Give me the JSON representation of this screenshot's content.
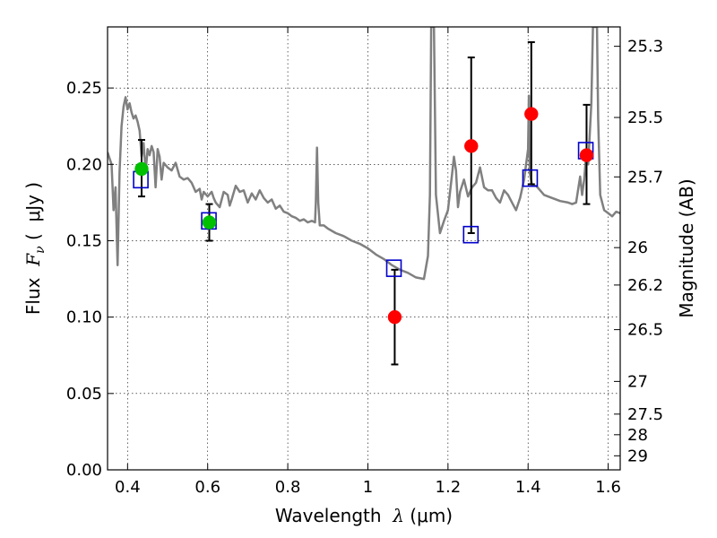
{
  "chart_data": {
    "type": "scatter",
    "xlabel": {
      "prefix": "Wavelength  ",
      "symbol": "λ",
      "unit": " (μm)"
    },
    "ylabel": {
      "prefix": "Flux  ",
      "symbol": "F",
      "subscript": "ν",
      "unit": " (  μJy )"
    },
    "y2label": "Magnitude (AB)",
    "xlim": [
      0.35,
      1.63
    ],
    "ylim": [
      0.0,
      0.29
    ],
    "xticks": [
      0.4,
      0.6,
      0.8,
      1.0,
      1.2,
      1.4,
      1.6
    ],
    "xtick_labels": [
      "0.4",
      "0.6",
      "0.8",
      "1",
      "1.2",
      "1.4",
      "1.6"
    ],
    "yticks": [
      0.0,
      0.05,
      0.1,
      0.15,
      0.2,
      0.25
    ],
    "ytick_labels": [
      "0.00",
      "0.05",
      "0.10",
      "0.15",
      "0.20",
      "0.25"
    ],
    "y2ticks": [
      {
        "label": "25.3",
        "flux": 0.2773
      },
      {
        "label": "25.5",
        "flux": 0.2307
      },
      {
        "label": "25.7",
        "flux": 0.1918
      },
      {
        "label": "26",
        "flux": 0.1455
      },
      {
        "label": "26.2",
        "flux": 0.121
      },
      {
        "label": "26.5",
        "flux": 0.0918
      },
      {
        "label": "27",
        "flux": 0.0579
      },
      {
        "label": "27.5",
        "flux": 0.0365
      },
      {
        "label": "28",
        "flux": 0.023
      },
      {
        "label": "29",
        "flux": 0.0092
      }
    ],
    "grid": true,
    "colors": {
      "model": "#808080",
      "observed_optical": "#00c000",
      "observed_nir": "#ff0000",
      "model_photometry": "#0000cc",
      "errorbar": "#000000"
    },
    "series": [
      {
        "kind": "model_spectrum",
        "points": [
          [
            0.35,
            0.208
          ],
          [
            0.355,
            0.204
          ],
          [
            0.36,
            0.2
          ],
          [
            0.365,
            0.17
          ],
          [
            0.37,
            0.185
          ],
          [
            0.375,
            0.134
          ],
          [
            0.38,
            0.195
          ],
          [
            0.385,
            0.225
          ],
          [
            0.39,
            0.238
          ],
          [
            0.395,
            0.244
          ],
          [
            0.4,
            0.236
          ],
          [
            0.405,
            0.24
          ],
          [
            0.41,
            0.234
          ],
          [
            0.415,
            0.23
          ],
          [
            0.42,
            0.232
          ],
          [
            0.425,
            0.228
          ],
          [
            0.43,
            0.222
          ],
          [
            0.435,
            0.205
          ],
          [
            0.44,
            0.214
          ],
          [
            0.445,
            0.195
          ],
          [
            0.45,
            0.21
          ],
          [
            0.455,
            0.206
          ],
          [
            0.46,
            0.212
          ],
          [
            0.465,
            0.208
          ],
          [
            0.47,
            0.185
          ],
          [
            0.475,
            0.21
          ],
          [
            0.48,
            0.205
          ],
          [
            0.485,
            0.19
          ],
          [
            0.49,
            0.201
          ],
          [
            0.5,
            0.198
          ],
          [
            0.51,
            0.196
          ],
          [
            0.52,
            0.201
          ],
          [
            0.53,
            0.192
          ],
          [
            0.54,
            0.19
          ],
          [
            0.55,
            0.191
          ],
          [
            0.56,
            0.188
          ],
          [
            0.57,
            0.182
          ],
          [
            0.58,
            0.184
          ],
          [
            0.585,
            0.177
          ],
          [
            0.59,
            0.182
          ],
          [
            0.6,
            0.179
          ],
          [
            0.61,
            0.182
          ],
          [
            0.615,
            0.178
          ],
          [
            0.62,
            0.175
          ],
          [
            0.63,
            0.172
          ],
          [
            0.64,
            0.182
          ],
          [
            0.65,
            0.18
          ],
          [
            0.655,
            0.173
          ],
          [
            0.66,
            0.177
          ],
          [
            0.67,
            0.186
          ],
          [
            0.68,
            0.182
          ],
          [
            0.69,
            0.183
          ],
          [
            0.7,
            0.175
          ],
          [
            0.71,
            0.181
          ],
          [
            0.72,
            0.177
          ],
          [
            0.73,
            0.183
          ],
          [
            0.74,
            0.178
          ],
          [
            0.75,
            0.175
          ],
          [
            0.76,
            0.177
          ],
          [
            0.77,
            0.171
          ],
          [
            0.78,
            0.173
          ],
          [
            0.79,
            0.169
          ],
          [
            0.8,
            0.168
          ],
          [
            0.81,
            0.166
          ],
          [
            0.82,
            0.165
          ],
          [
            0.83,
            0.163
          ],
          [
            0.84,
            0.164
          ],
          [
            0.85,
            0.162
          ],
          [
            0.86,
            0.163
          ],
          [
            0.868,
            0.162
          ],
          [
            0.87,
            0.175
          ],
          [
            0.873,
            0.211
          ],
          [
            0.876,
            0.175
          ],
          [
            0.88,
            0.16
          ],
          [
            0.89,
            0.16
          ],
          [
            0.9,
            0.158
          ],
          [
            0.92,
            0.155
          ],
          [
            0.94,
            0.153
          ],
          [
            0.96,
            0.15
          ],
          [
            0.98,
            0.148
          ],
          [
            1.0,
            0.145
          ],
          [
            1.02,
            0.141
          ],
          [
            1.04,
            0.138
          ],
          [
            1.06,
            0.134
          ],
          [
            1.08,
            0.131
          ],
          [
            1.1,
            0.129
          ],
          [
            1.12,
            0.126
          ],
          [
            1.14,
            0.125
          ],
          [
            1.15,
            0.14
          ],
          [
            1.155,
            0.18
          ],
          [
            1.158,
            0.29
          ],
          [
            1.165,
            0.29
          ],
          [
            1.17,
            0.18
          ],
          [
            1.18,
            0.155
          ],
          [
            1.19,
            0.163
          ],
          [
            1.2,
            0.17
          ],
          [
            1.21,
            0.193
          ],
          [
            1.215,
            0.205
          ],
          [
            1.22,
            0.196
          ],
          [
            1.225,
            0.172
          ],
          [
            1.23,
            0.182
          ],
          [
            1.24,
            0.19
          ],
          [
            1.25,
            0.179
          ],
          [
            1.26,
            0.185
          ],
          [
            1.27,
            0.188
          ],
          [
            1.28,
            0.198
          ],
          [
            1.29,
            0.185
          ],
          [
            1.3,
            0.183
          ],
          [
            1.31,
            0.183
          ],
          [
            1.32,
            0.178
          ],
          [
            1.33,
            0.175
          ],
          [
            1.34,
            0.183
          ],
          [
            1.35,
            0.18
          ],
          [
            1.36,
            0.175
          ],
          [
            1.37,
            0.17
          ],
          [
            1.38,
            0.178
          ],
          [
            1.39,
            0.19
          ],
          [
            1.4,
            0.21
          ],
          [
            1.402,
            0.245
          ],
          [
            1.404,
            0.195
          ],
          [
            1.41,
            0.186
          ],
          [
            1.42,
            0.186
          ],
          [
            1.44,
            0.18
          ],
          [
            1.46,
            0.178
          ],
          [
            1.48,
            0.176
          ],
          [
            1.5,
            0.175
          ],
          [
            1.51,
            0.174
          ],
          [
            1.52,
            0.175
          ],
          [
            1.53,
            0.192
          ],
          [
            1.535,
            0.18
          ],
          [
            1.54,
            0.19
          ],
          [
            1.545,
            0.206
          ],
          [
            1.55,
            0.2
          ],
          [
            1.558,
            0.24
          ],
          [
            1.562,
            0.29
          ],
          [
            1.572,
            0.29
          ],
          [
            1.575,
            0.23
          ],
          [
            1.58,
            0.18
          ],
          [
            1.59,
            0.17
          ],
          [
            1.6,
            0.168
          ],
          [
            1.61,
            0.166
          ],
          [
            1.62,
            0.169
          ],
          [
            1.63,
            0.168
          ]
        ]
      },
      {
        "kind": "model_photometry",
        "points": [
          [
            0.433,
            0.19
          ],
          [
            0.603,
            0.163
          ],
          [
            1.065,
            0.132
          ],
          [
            1.257,
            0.154
          ],
          [
            1.405,
            0.191
          ],
          [
            1.544,
            0.209
          ]
        ]
      },
      {
        "kind": "observed",
        "points": [
          {
            "x": 0.435,
            "y": 0.197,
            "lo": 0.179,
            "hi": 0.216,
            "band": "optical"
          },
          {
            "x": 0.604,
            "y": 0.162,
            "lo": 0.15,
            "hi": 0.174,
            "band": "optical"
          },
          {
            "x": 1.067,
            "y": 0.1,
            "lo": 0.069,
            "hi": 0.131,
            "band": "nir"
          },
          {
            "x": 1.258,
            "y": 0.212,
            "lo": 0.155,
            "hi": 0.27,
            "band": "nir"
          },
          {
            "x": 1.408,
            "y": 0.233,
            "lo": 0.187,
            "hi": 0.28,
            "band": "nir"
          },
          {
            "x": 1.546,
            "y": 0.206,
            "lo": 0.174,
            "hi": 0.239,
            "band": "nir"
          }
        ]
      }
    ]
  }
}
